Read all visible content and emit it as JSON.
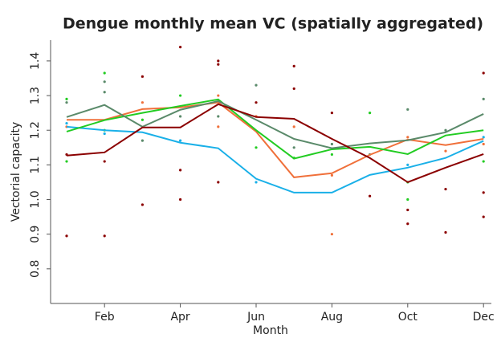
{
  "chart_data": {
    "type": "line",
    "title": "Dengue monthly mean VC (spatially aggregated)",
    "x_label": "Month",
    "y_label": "Vectorial capacity",
    "categories": [
      null,
      "Feb",
      null,
      "Apr",
      null,
      "Jun",
      null,
      "Aug",
      null,
      "Oct",
      null,
      "Dec"
    ],
    "ylim": [
      0.7,
      1.46
    ],
    "yticks": [
      0.8,
      0.9,
      {
        "value": 1.0,
        "label": "1.0"
      },
      1.1,
      1.2,
      1.3,
      1.4
    ],
    "series": [
      {
        "color": "#1ab0e8",
        "values": [
          1.21,
          1.2,
          1.194,
          1.164,
          1.148,
          1.06,
          1.02,
          1.02,
          1.071,
          1.092,
          1.12,
          1.169
        ],
        "points": {
          "x": [
            0,
            1,
            3,
            5,
            9,
            11
          ],
          "y": [
            1.22,
            1.19,
            1.17,
            1.05,
            1.1,
            1.18
          ]
        }
      },
      {
        "color": "#f0703a",
        "values": [
          1.23,
          1.23,
          1.261,
          1.266,
          1.28,
          1.196,
          1.064,
          1.076,
          1.129,
          1.173,
          1.157,
          1.175
        ],
        "points": {
          "x": [
            0,
            2,
            4,
            4,
            5,
            6,
            7,
            7,
            9,
            10,
            11
          ],
          "y": [
            1.21,
            1.28,
            1.3,
            1.21,
            1.24,
            1.21,
            0.9,
            1.07,
            1.18,
            1.14,
            1.16
          ]
        }
      },
      {
        "color": "#22cc22",
        "values": [
          1.196,
          1.229,
          1.25,
          1.27,
          1.289,
          1.2,
          1.118,
          1.145,
          1.152,
          1.131,
          1.185,
          1.2
        ],
        "points": {
          "x": [
            0,
            0,
            1,
            1,
            2,
            3,
            5,
            6,
            7,
            8,
            9,
            9,
            11
          ],
          "y": [
            1.29,
            1.11,
            1.365,
            1.2,
            1.23,
            1.3,
            1.15,
            1.12,
            1.13,
            1.25,
            1.0,
            1.05,
            1.11
          ]
        }
      },
      {
        "color": "#5a8a6a",
        "values": [
          1.238,
          1.273,
          1.21,
          1.259,
          1.284,
          1.23,
          1.175,
          1.148,
          1.162,
          1.171,
          1.194,
          1.247
        ],
        "points": {
          "x": [
            0,
            1,
            1,
            2,
            3,
            4,
            5,
            6,
            7,
            8,
            9,
            10,
            11
          ],
          "y": [
            1.28,
            1.34,
            1.31,
            1.17,
            1.24,
            1.24,
            1.33,
            1.15,
            1.16,
            1.13,
            1.26,
            1.2,
            1.29
          ]
        }
      },
      {
        "color": "#8b0000",
        "values": [
          1.127,
          1.136,
          1.208,
          1.208,
          1.275,
          1.238,
          1.233,
          1.175,
          1.12,
          1.05,
          1.092,
          1.131
        ],
        "points": {
          "x": [
            0,
            0,
            1,
            1,
            2,
            2,
            3,
            3,
            3,
            4,
            4,
            4,
            5,
            6,
            6,
            7,
            8,
            9,
            9,
            10,
            10,
            11,
            11,
            11
          ],
          "y": [
            0.895,
            1.13,
            0.895,
            1.11,
            0.985,
            1.355,
            1.44,
            1.0,
            1.085,
            1.39,
            1.4,
            1.05,
            1.28,
            1.385,
            1.32,
            1.25,
            1.01,
            0.93,
            0.97,
            0.905,
            1.03,
            1.365,
            0.95,
            1.02
          ]
        }
      }
    ]
  }
}
